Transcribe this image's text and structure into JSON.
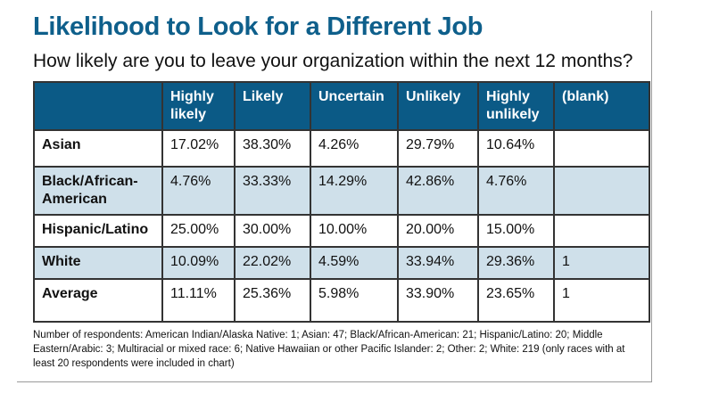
{
  "title": "Likelihood to Look for a Different Job",
  "subtitle": "How likely are you to leave your organization within the next 12 months?",
  "table": {
    "columns": [
      "",
      "Highly likely",
      "Likely",
      "Uncertain",
      "Unlikely",
      "Highly unlikely",
      "(blank)"
    ],
    "rows": [
      {
        "label": "Asian",
        "values": [
          "17.02%",
          "38.30%",
          "4.26%",
          "29.79%",
          "10.64%",
          ""
        ]
      },
      {
        "label": "Black/African-American",
        "values": [
          "4.76%",
          "33.33%",
          "14.29%",
          "42.86%",
          "4.76%",
          ""
        ]
      },
      {
        "label": "Hispanic/Latino",
        "values": [
          "25.00%",
          "30.00%",
          "10.00%",
          "20.00%",
          "15.00%",
          ""
        ]
      },
      {
        "label": "White",
        "values": [
          "10.09%",
          "22.02%",
          "4.59%",
          "33.94%",
          "29.36%",
          "1"
        ]
      },
      {
        "label": "Average",
        "values": [
          "11.11%",
          "25.36%",
          "5.98%",
          "33.90%",
          "23.65%",
          "1"
        ]
      }
    ]
  },
  "note": "Number of respondents: American Indian/Alaska Native: 1; Asian: 47; Black/African-American: 21; Hispanic/Latino: 20; Middle Eastern/Arabic: 3; Multiracial or mixed race: 6; Native Hawaiian or other Pacific Islander: 2; Other: 2; White: 219 (only races with at least 20 respondents were included in chart)",
  "colors": {
    "header": "#0b5a86",
    "title": "#0e5f8b",
    "alt_row": "#cfe0ea"
  }
}
